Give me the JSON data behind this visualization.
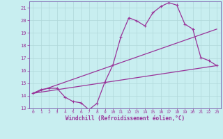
{
  "xlabel": "Windchill (Refroidissement éolien,°C)",
  "bg_color": "#c8eef0",
  "grid_color": "#b0d8da",
  "line_color": "#993399",
  "spine_color": "#7755aa",
  "xlim": [
    -0.5,
    23.5
  ],
  "ylim": [
    13,
    21.5
  ],
  "xticks": [
    0,
    1,
    2,
    3,
    4,
    5,
    6,
    7,
    8,
    9,
    10,
    11,
    12,
    13,
    14,
    15,
    16,
    17,
    18,
    19,
    20,
    21,
    22,
    23
  ],
  "yticks": [
    13,
    14,
    15,
    16,
    17,
    18,
    19,
    20,
    21
  ],
  "curve1_x": [
    0,
    1,
    2,
    3,
    4,
    5,
    6,
    7,
    8,
    9,
    10,
    11,
    12,
    13,
    14,
    15,
    16,
    17,
    18,
    19,
    20,
    21,
    22,
    23
  ],
  "curve1_y": [
    14.2,
    14.5,
    14.6,
    14.6,
    13.9,
    13.55,
    13.45,
    12.9,
    13.4,
    15.1,
    16.45,
    18.7,
    20.2,
    19.95,
    19.55,
    20.6,
    21.1,
    21.4,
    21.2,
    19.7,
    19.3,
    17.05,
    16.8,
    16.4
  ],
  "curve2_x": [
    0,
    23
  ],
  "curve2_y": [
    14.2,
    16.4
  ],
  "curve3_x": [
    0,
    23
  ],
  "curve3_y": [
    14.2,
    19.3
  ]
}
